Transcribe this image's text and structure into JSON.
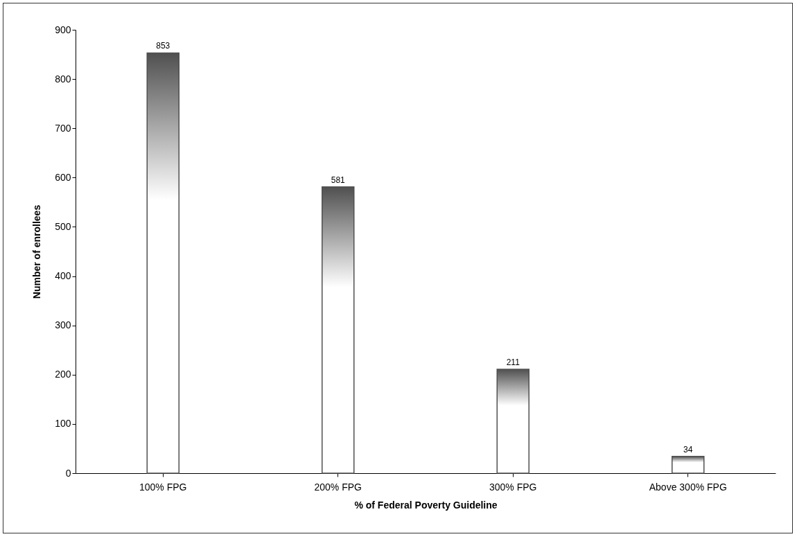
{
  "chart_data": {
    "type": "bar",
    "xlabel": "% of Federal Poverty Guideline",
    "ylabel": "Number of enrollees",
    "categories": [
      "100% FPG",
      "200% FPG",
      "300% FPG",
      "Above 300% FPG"
    ],
    "values": [
      853,
      581,
      211,
      34
    ],
    "color": "#505050",
    "ylim": [
      0,
      900
    ],
    "yticks": [
      0,
      100,
      200,
      300,
      400,
      500,
      600,
      700,
      800,
      900
    ],
    "data_labels": true,
    "grid": false
  }
}
